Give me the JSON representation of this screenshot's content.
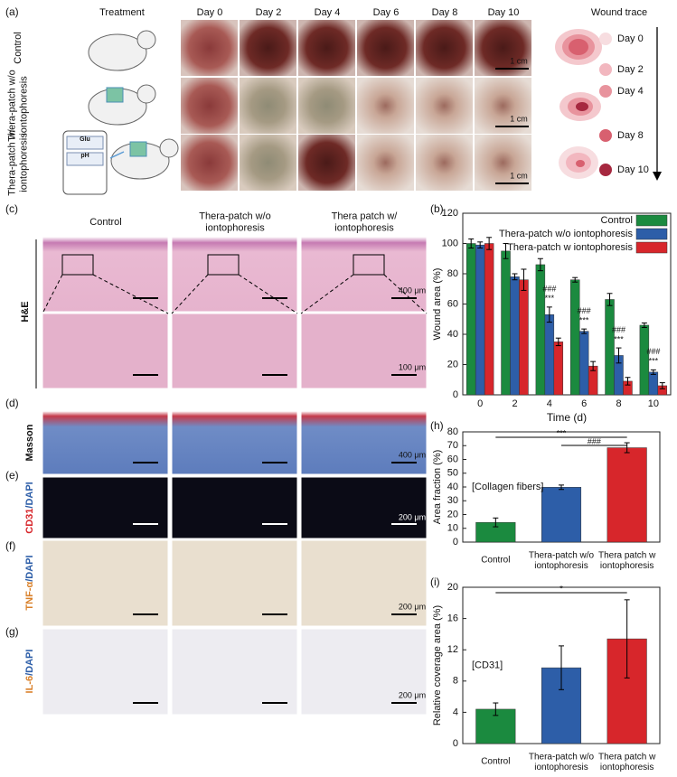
{
  "figure": {
    "panel_labels": [
      "(a)",
      "(b)",
      "(c)",
      "(d)",
      "(e)",
      "(f)",
      "(g)",
      "(h)",
      "(i)"
    ],
    "a": {
      "treatment": "Treatment",
      "days": [
        "Day 0",
        "Day 2",
        "Day 4",
        "Day 6",
        "Day 8",
        "Day 10"
      ],
      "rows": [
        "Control",
        "Thera-patch w/o\niontophoresis",
        "Thera-patch w/\niontophoresis"
      ],
      "scale_bars": [
        "1 cm",
        "1 cm",
        "1 cm"
      ],
      "phone": [
        "Glu",
        "pH"
      ],
      "wound_trace": {
        "title": "Wound trace",
        "days": [
          "Day 0",
          "Day 2",
          "Day 4",
          "Day 8",
          "Day 10"
        ],
        "colors": [
          "#f7dde0",
          "#f2b7bf",
          "#e8939d",
          "#d8606f",
          "#a6283f"
        ]
      }
    },
    "c": {
      "columns": [
        "Control",
        "Thera-patch w/o\niontophoresis",
        "Thera patch  w/\niontophoresis"
      ],
      "stain": "H&E",
      "scale_bars": [
        "400 μm",
        "100 μm"
      ]
    },
    "d": {
      "stain": "Masson",
      "scale_bar": "400 μm"
    },
    "e": {
      "stain": [
        "CD31",
        "/DAPI"
      ],
      "scale_bar": "200 μm"
    },
    "f": {
      "stain": [
        "TNF-α",
        "/DAPI"
      ],
      "scale_bar": "200 μm"
    },
    "g": {
      "stain": [
        "IL-6",
        "/DAPI"
      ],
      "scale_bar": "200 μm"
    }
  },
  "chart_data": [
    {
      "type": "bar",
      "x_label": "Time (d)",
      "y_label": "Wound area (%)",
      "categories": [
        "0",
        "2",
        "4",
        "6",
        "8",
        "10"
      ],
      "series": [
        {
          "name": "Control",
          "color": "#1b8a3f",
          "values": [
            100,
            95,
            86,
            76,
            63,
            46
          ],
          "errors": [
            3,
            5,
            4,
            1.5,
            4,
            1.5
          ]
        },
        {
          "name": "Thera-patch w/o iontophoresis",
          "color": "#2d5ea8",
          "values": [
            99,
            78,
            53,
            42,
            26,
            15
          ],
          "errors": [
            2,
            2,
            5,
            1.5,
            5,
            1.5
          ]
        },
        {
          "name": "Thera-patch w iontophoresis",
          "color": "#d7262b",
          "values": [
            100,
            76,
            35,
            19,
            9,
            6
          ],
          "errors": [
            4,
            7,
            2.5,
            3,
            2.5,
            2
          ]
        }
      ],
      "annotations": [
        "",
        "",
        "###\n***",
        "###\n***",
        "###\n***",
        "###\n***"
      ],
      "ylim": [
        0,
        120
      ],
      "yticks": [
        0,
        20,
        40,
        60,
        80,
        100,
        120
      ],
      "legend": "upper right"
    },
    {
      "type": "bar",
      "y_label": "Area fraction (%)",
      "categories": [
        "Control",
        "Thera-patch w/o\niontophoresis",
        "Thera patch w\niontophoresis"
      ],
      "values": [
        14.3,
        39.8,
        68.5
      ],
      "errors": [
        3.2,
        1.6,
        3.6
      ],
      "colors": [
        "#1b8a3f",
        "#2d5ea8",
        "#d7262b"
      ],
      "label": "[Collagen fibers]",
      "annotations": [
        "***",
        "###"
      ],
      "ylim": [
        0,
        80
      ],
      "yticks": [
        0,
        10,
        20,
        30,
        40,
        50,
        60,
        70,
        80
      ]
    },
    {
      "type": "bar",
      "y_label": "Relative coverage area (%)",
      "categories": [
        "Control",
        "Thera-patch w/o\niontophoresis",
        "Thera patch w\niontophoresis"
      ],
      "values": [
        4.4,
        9.7,
        13.4
      ],
      "errors": [
        0.8,
        2.8,
        5
      ],
      "colors": [
        "#1b8a3f",
        "#2d5ea8",
        "#d7262b"
      ],
      "label": "[CD31]",
      "annotations": [
        "*"
      ],
      "ylim": [
        0,
        20
      ],
      "yticks": [
        0,
        4,
        8,
        12,
        16,
        20
      ]
    }
  ]
}
